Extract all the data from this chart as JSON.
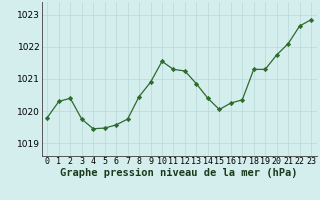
{
  "x": [
    0,
    1,
    2,
    3,
    4,
    5,
    6,
    7,
    8,
    9,
    10,
    11,
    12,
    13,
    14,
    15,
    16,
    17,
    18,
    19,
    20,
    21,
    22,
    23
  ],
  "y": [
    1019.8,
    1020.3,
    1020.4,
    1019.75,
    1019.45,
    1019.47,
    1019.57,
    1019.75,
    1020.45,
    1020.9,
    1021.55,
    1021.3,
    1021.25,
    1020.85,
    1020.4,
    1020.05,
    1020.25,
    1020.35,
    1021.3,
    1021.3,
    1021.75,
    1022.1,
    1022.65,
    1022.85
  ],
  "line_color": "#2d6a2d",
  "marker": "D",
  "marker_size": 2.2,
  "bg_color": "#d4eeee",
  "grid_color": "#b8d8d8",
  "xlabel": "Graphe pression niveau de la mer (hPa)",
  "xlabel_fontsize": 7.5,
  "yticks": [
    1019,
    1020,
    1021,
    1022,
    1023
  ],
  "ylim": [
    1018.6,
    1023.4
  ],
  "xlim": [
    -0.5,
    23.5
  ],
  "xtick_labels": [
    "0",
    "1",
    "2",
    "3",
    "4",
    "5",
    "6",
    "7",
    "8",
    "9",
    "10",
    "11",
    "12",
    "13",
    "14",
    "15",
    "16",
    "17",
    "18",
    "19",
    "20",
    "21",
    "22",
    "23"
  ],
  "tick_fontsize": 6.0,
  "ytick_fontsize": 6.5,
  "title_color": "#1a3a1a"
}
